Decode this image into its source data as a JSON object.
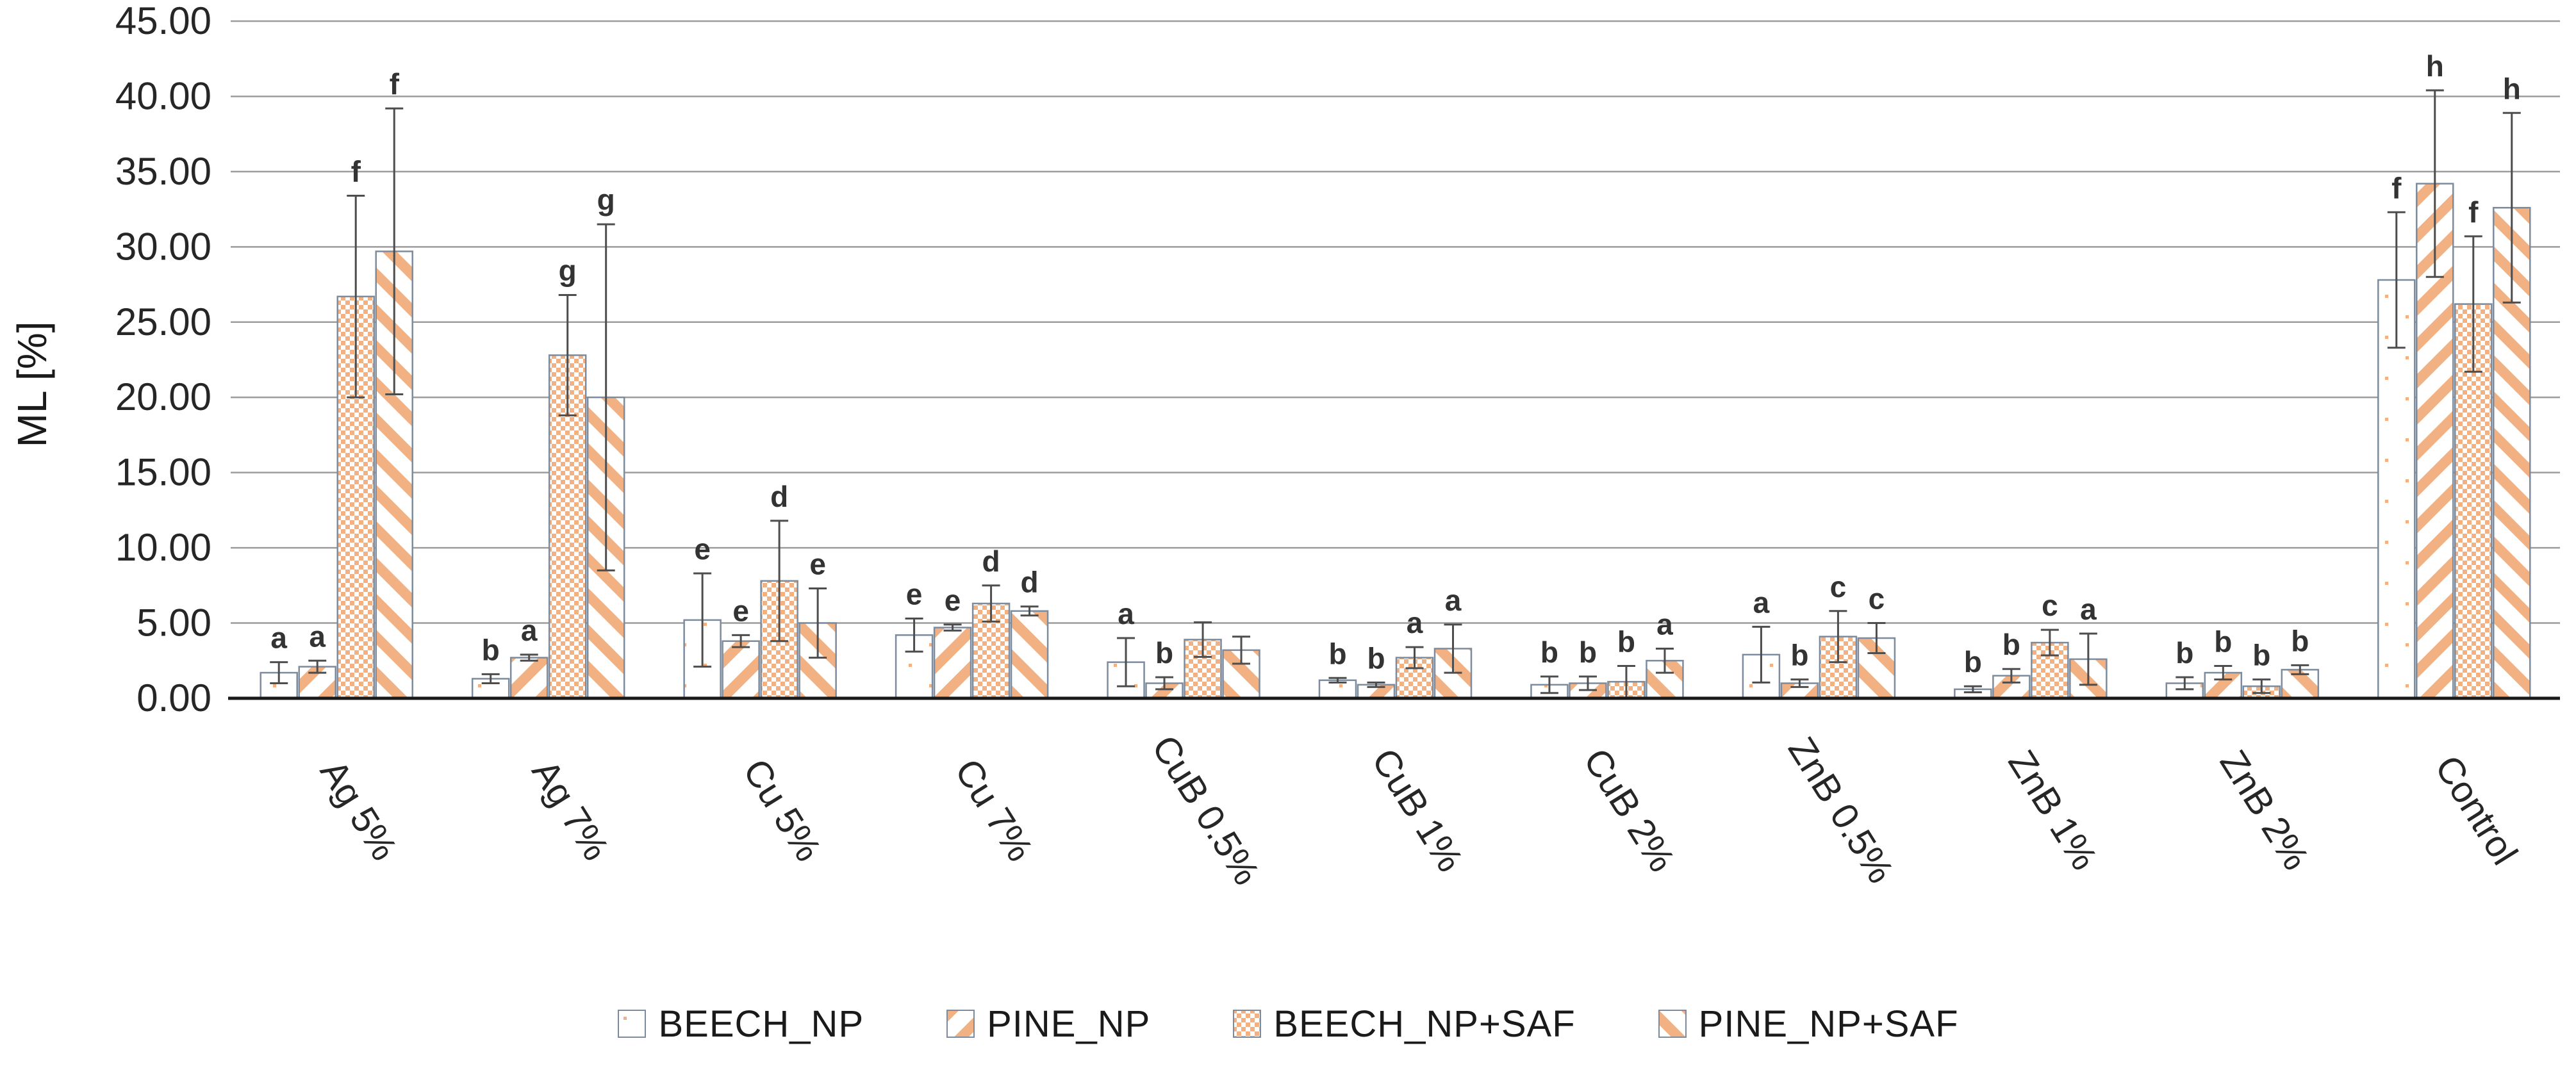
{
  "chart_data": {
    "type": "bar",
    "title": "",
    "xlabel": "",
    "ylabel": "ML [%]",
    "y_axis": {
      "min": 0,
      "max": 45,
      "step": 5,
      "tick_decimals": 2
    },
    "grid": true,
    "legend_position": "bottom",
    "categories": [
      "Ag 5%",
      "Ag 7%",
      "Cu 5%",
      "Cu 7%",
      "CuB 0.5%",
      "CuB 1%",
      "CuB 2%",
      "ZnB 0.5%",
      "ZnB 1%",
      "ZnB 2%",
      "Control"
    ],
    "series": [
      {
        "name": "BEECH_NP",
        "pattern": "sparse-dots",
        "values": [
          1.7,
          1.3,
          5.2,
          4.2,
          2.4,
          1.2,
          0.9,
          2.9,
          0.6,
          1.0,
          27.8
        ],
        "errors": [
          0.7,
          0.3,
          3.1,
          1.1,
          1.6,
          0.15,
          0.55,
          1.85,
          0.2,
          0.4,
          4.5
        ],
        "letters": [
          "a",
          "b",
          "e",
          "e",
          "a",
          "b",
          "b",
          "a",
          "b",
          "b",
          "f"
        ]
      },
      {
        "name": "PINE_NP",
        "pattern": "diagonal-up-stripes",
        "values": [
          2.1,
          2.7,
          3.8,
          4.7,
          1.0,
          0.9,
          1.0,
          1.0,
          1.5,
          1.7,
          34.2
        ],
        "errors": [
          0.4,
          0.2,
          0.4,
          0.2,
          0.4,
          0.15,
          0.45,
          0.25,
          0.45,
          0.45,
          6.2
        ],
        "letters": [
          "a",
          "a",
          "e",
          "e",
          "b",
          "b",
          "b",
          "b",
          "b",
          "b",
          "h"
        ]
      },
      {
        "name": "BEECH_NP+SAF",
        "pattern": "dense-checker",
        "values": [
          26.7,
          22.8,
          7.8,
          6.3,
          3.9,
          2.7,
          1.1,
          4.1,
          3.7,
          0.8,
          26.2
        ],
        "errors": [
          6.7,
          4.0,
          4.0,
          1.2,
          1.15,
          0.7,
          1.05,
          1.7,
          0.85,
          0.45,
          4.5
        ],
        "letters": [
          "f",
          "g",
          "d",
          "d",
          "",
          "a",
          "b",
          "c",
          "c",
          "b",
          "f"
        ]
      },
      {
        "name": "PINE_NP+SAF",
        "pattern": "diagonal-down-stripes",
        "values": [
          29.7,
          20.0,
          5.0,
          5.8,
          3.2,
          3.3,
          2.5,
          4.0,
          2.6,
          1.9,
          32.6
        ],
        "errors": [
          9.5,
          11.5,
          2.3,
          0.3,
          0.9,
          1.6,
          0.8,
          1.0,
          1.7,
          0.3,
          6.3
        ],
        "letters": [
          "f",
          "g",
          "e",
          "d",
          "",
          "a",
          "a",
          "c",
          "a",
          "b",
          "h"
        ]
      }
    ]
  },
  "legend": {
    "items": [
      "BEECH_NP",
      "PINE_NP",
      "BEECH_NP+SAF",
      "PINE_NP+SAF"
    ]
  },
  "colors": {
    "orange": "#F2B183",
    "bar_border": "#7C8B9D",
    "error_bar": "#4D4D4D",
    "grid_line": "#9C9C9C",
    "axis_line": "#1A1A1A",
    "tick_text": "#262626",
    "letter_text": "#333333",
    "background": "#FFFFFF"
  }
}
